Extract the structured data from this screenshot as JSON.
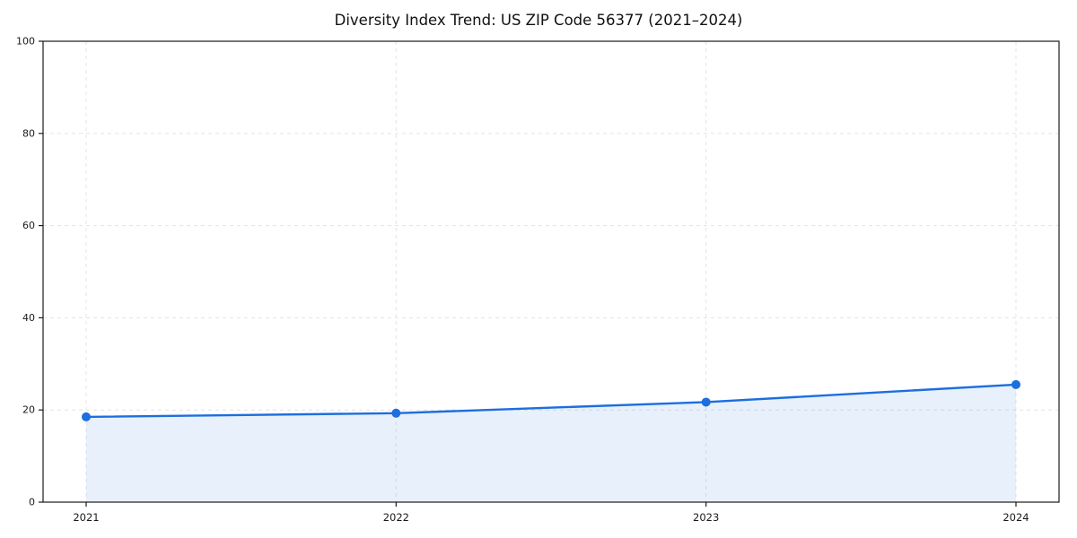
{
  "chart_data": {
    "type": "area",
    "title": "Diversity Index Trend: US ZIP Code 56377 (2021–2024)",
    "x": [
      "2021",
      "2022",
      "2023",
      "2024"
    ],
    "series": [
      {
        "name": "Diversity Index",
        "values": [
          18.5,
          19.3,
          21.7,
          25.5
        ]
      }
    ],
    "xlabel": "",
    "ylabel": "",
    "ylim": [
      0,
      100
    ],
    "yticks": [
      0,
      20,
      40,
      60,
      80,
      100
    ],
    "grid": "dashed-both-axes",
    "legend": "none",
    "marker": "circle",
    "colors": {
      "line": "#1d6ede",
      "marker": "#1d6ede",
      "fill": "rgba(29,110,222,0.10)",
      "grid": "#e4e4e4",
      "axis": "#1a1a1a",
      "tick_text": "#1a1a1a",
      "background": "#ffffff"
    }
  }
}
